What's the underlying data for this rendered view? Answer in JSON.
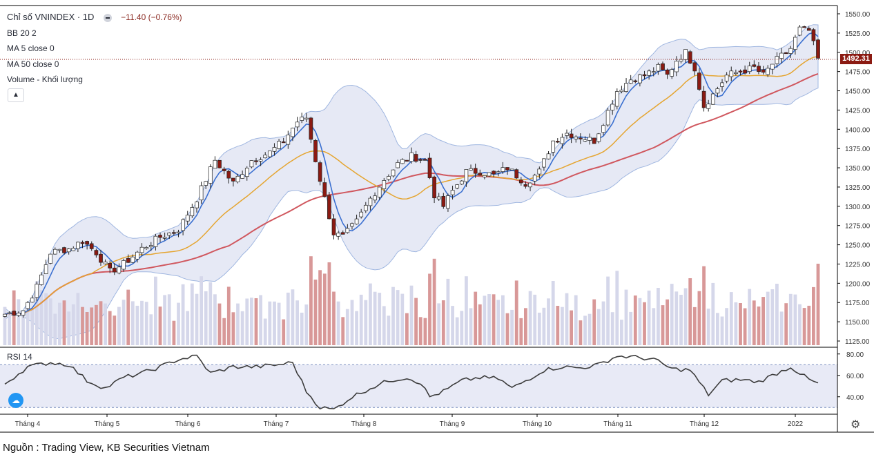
{
  "legend": {
    "title": "Chỉ số VNINDEX · 1D",
    "change": "−11.40 (−0.76%)",
    "bb": "BB 20 2",
    "ma5": "MA 5 close 0",
    "ma50": "MA 50 close 0",
    "volume": "Volume - Khối lượng"
  },
  "rsi_label": "RSI 14",
  "last_price_label": "1492.31",
  "source": "Nguồn : Trading View, KB Securities Vietnam",
  "icons": {
    "collapse": "chevron-up-icon",
    "settings": "gear-icon",
    "logo": "tradingview-logo-icon"
  },
  "colors": {
    "up_candle": "#ffffff",
    "down_candle": "#8b1a12",
    "ma5": "#3a6fd0",
    "ma20": "#e5a530",
    "ma50": "#d0575e",
    "bollinger_fill": "#dde1f2",
    "volume_up": "#d5d7ea",
    "volume_down": "#d89898",
    "rsi_line": "#3c3c3c"
  },
  "chart_data": [
    {
      "type": "line",
      "title": "Chỉ số VNINDEX 1D",
      "ylim": [
        1120,
        1555
      ],
      "y_ticks": [
        "1550.00",
        "1525.00",
        "1500.00",
        "1475.00",
        "1450.00",
        "1425.00",
        "1400.00",
        "1375.00",
        "1350.00",
        "1325.00",
        "1300.00",
        "1275.00",
        "1250.00",
        "1225.00",
        "1200.00",
        "1175.00",
        "1150.00",
        "1125.00"
      ],
      "x_ticks": [
        "Tháng 4",
        "Tháng 5",
        "Tháng 6",
        "Tháng 7",
        "Tháng 8",
        "Tháng 9",
        "Tháng 10",
        "Tháng 11",
        "Tháng 12",
        "2022"
      ],
      "last_price": 1492.31,
      "close_anchors": [
        [
          0,
          1160
        ],
        [
          4,
          1165
        ],
        [
          7,
          1195
        ],
        [
          10,
          1240
        ],
        [
          14,
          1245
        ],
        [
          17,
          1255
        ],
        [
          20,
          1240
        ],
        [
          23,
          1215
        ],
        [
          26,
          1225
        ],
        [
          30,
          1245
        ],
        [
          34,
          1260
        ],
        [
          38,
          1270
        ],
        [
          42,
          1310
        ],
        [
          46,
          1360
        ],
        [
          50,
          1330
        ],
        [
          54,
          1360
        ],
        [
          58,
          1370
        ],
        [
          61,
          1385
        ],
        [
          64,
          1410
        ],
        [
          66,
          1415
        ],
        [
          68,
          1360
        ],
        [
          70,
          1310
        ],
        [
          72,
          1265
        ],
        [
          74,
          1260
        ],
        [
          77,
          1280
        ],
        [
          80,
          1310
        ],
        [
          83,
          1335
        ],
        [
          86,
          1355
        ],
        [
          89,
          1365
        ],
        [
          92,
          1360
        ],
        [
          94,
          1315
        ],
        [
          96,
          1300
        ],
        [
          98,
          1320
        ],
        [
          101,
          1345
        ],
        [
          104,
          1345
        ],
        [
          107,
          1340
        ],
        [
          110,
          1350
        ],
        [
          112,
          1340
        ],
        [
          114,
          1330
        ],
        [
          117,
          1345
        ],
        [
          120,
          1385
        ],
        [
          123,
          1395
        ],
        [
          126,
          1390
        ],
        [
          129,
          1385
        ],
        [
          131,
          1410
        ],
        [
          134,
          1450
        ],
        [
          137,
          1465
        ],
        [
          140,
          1470
        ],
        [
          143,
          1480
        ],
        [
          145,
          1470
        ],
        [
          147,
          1490
        ],
        [
          149,
          1500
        ],
        [
          151,
          1480
        ],
        [
          153,
          1430
        ],
        [
          155,
          1445
        ],
        [
          158,
          1470
        ],
        [
          161,
          1475
        ],
        [
          164,
          1480
        ],
        [
          166,
          1470
        ],
        [
          168,
          1485
        ],
        [
          170,
          1495
        ],
        [
          172,
          1505
        ],
        [
          174,
          1530
        ],
        [
          176,
          1528
        ],
        [
          177,
          1510
        ],
        [
          178,
          1492.31
        ]
      ]
    },
    {
      "type": "bar",
      "title": "Volume - Khối lượng",
      "note": "volume pane, relative values"
    },
    {
      "type": "line",
      "title": "RSI 14",
      "ylim": [
        25,
        85
      ],
      "y_ticks": [
        "80.00",
        "60.00",
        "40.00"
      ],
      "bands": [
        30,
        70
      ],
      "rsi_anchors": [
        [
          0,
          52
        ],
        [
          5,
          68
        ],
        [
          10,
          72
        ],
        [
          14,
          70
        ],
        [
          18,
          55
        ],
        [
          22,
          48
        ],
        [
          26,
          58
        ],
        [
          30,
          62
        ],
        [
          34,
          68
        ],
        [
          38,
          75
        ],
        [
          42,
          78
        ],
        [
          45,
          62
        ],
        [
          50,
          68
        ],
        [
          55,
          68
        ],
        [
          60,
          70
        ],
        [
          63,
          72
        ],
        [
          66,
          45
        ],
        [
          69,
          30
        ],
        [
          72,
          28
        ],
        [
          76,
          40
        ],
        [
          80,
          48
        ],
        [
          84,
          55
        ],
        [
          88,
          58
        ],
        [
          91,
          53
        ],
        [
          93,
          40
        ],
        [
          96,
          45
        ],
        [
          100,
          55
        ],
        [
          104,
          58
        ],
        [
          108,
          57
        ],
        [
          111,
          48
        ],
        [
          114,
          55
        ],
        [
          118,
          65
        ],
        [
          122,
          68
        ],
        [
          126,
          67
        ],
        [
          130,
          70
        ],
        [
          134,
          78
        ],
        [
          138,
          77
        ],
        [
          142,
          75
        ],
        [
          146,
          66
        ],
        [
          150,
          65
        ],
        [
          154,
          42
        ],
        [
          157,
          55
        ],
        [
          161,
          56
        ],
        [
          165,
          54
        ],
        [
          168,
          60
        ],
        [
          172,
          68
        ],
        [
          176,
          56
        ],
        [
          178,
          52
        ]
      ]
    }
  ]
}
